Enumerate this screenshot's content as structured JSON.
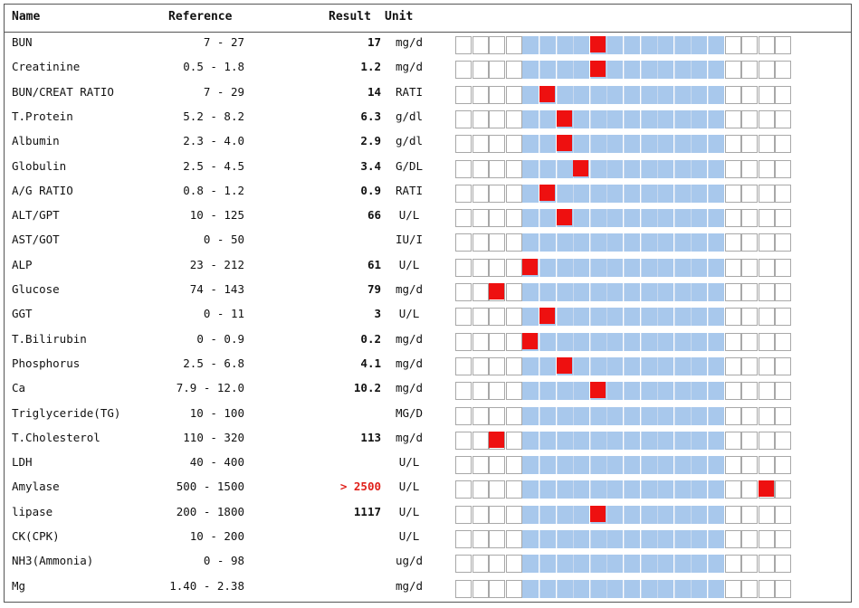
{
  "header": {
    "name": "Name",
    "reference": "Reference",
    "result": "Result",
    "unit": "Unit"
  },
  "colors": {
    "normal_band": "#a8c8ec",
    "marker": "#ee1010",
    "high_text": "#e0201a"
  },
  "rows": [
    {
      "name": "BUN",
      "reference": "7 - 27",
      "result": "17",
      "unit": "mg/d",
      "marker": 8,
      "high": false
    },
    {
      "name": "Creatinine",
      "reference": "0.5 - 1.8",
      "result": "1.2",
      "unit": "mg/d",
      "marker": 8,
      "high": false
    },
    {
      "name": "BUN/CREAT RATIO",
      "reference": "7 - 29",
      "result": "14",
      "unit": "RATI",
      "marker": 5,
      "high": false
    },
    {
      "name": "T.Protein",
      "reference": "5.2 - 8.2",
      "result": "6.3",
      "unit": "g/dl",
      "marker": 6,
      "high": false
    },
    {
      "name": "Albumin",
      "reference": "2.3 - 4.0",
      "result": "2.9",
      "unit": "g/dl",
      "marker": 6,
      "high": false
    },
    {
      "name": "Globulin",
      "reference": "2.5 - 4.5",
      "result": "3.4",
      "unit": "G/DL",
      "marker": 7,
      "high": false
    },
    {
      "name": "A/G RATIO",
      "reference": "0.8 - 1.2",
      "result": "0.9",
      "unit": "RATI",
      "marker": 5,
      "high": false
    },
    {
      "name": "ALT/GPT",
      "reference": "10 - 125",
      "result": "66",
      "unit": "U/L",
      "marker": 6,
      "high": false
    },
    {
      "name": "AST/GOT",
      "reference": "0 - 50",
      "result": "",
      "unit": "IU/I",
      "marker": null,
      "high": false
    },
    {
      "name": "ALP",
      "reference": "23 - 212",
      "result": "61",
      "unit": "U/L",
      "marker": 4,
      "high": false
    },
    {
      "name": "Glucose",
      "reference": "74 - 143",
      "result": "79",
      "unit": "mg/d",
      "marker": 2,
      "high": false
    },
    {
      "name": "GGT",
      "reference": "0 - 11",
      "result": "3",
      "unit": "U/L",
      "marker": 5,
      "high": false
    },
    {
      "name": "T.Bilirubin",
      "reference": "0 - 0.9",
      "result": "0.2",
      "unit": "mg/d",
      "marker": 4,
      "high": false
    },
    {
      "name": "Phosphorus",
      "reference": "2.5 - 6.8",
      "result": "4.1",
      "unit": "mg/d",
      "marker": 6,
      "high": false
    },
    {
      "name": "Ca",
      "reference": "7.9 - 12.0",
      "result": "10.2",
      "unit": "mg/d",
      "marker": 8,
      "high": false
    },
    {
      "name": "Triglyceride(TG)",
      "reference": "10 - 100",
      "result": "",
      "unit": "MG/D",
      "marker": null,
      "high": false
    },
    {
      "name": "T.Cholesterol",
      "reference": "110 - 320",
      "result": "113",
      "unit": "mg/d",
      "marker": 2,
      "high": false
    },
    {
      "name": "LDH",
      "reference": "40 - 400",
      "result": "",
      "unit": "U/L",
      "marker": null,
      "high": false
    },
    {
      "name": "Amylase",
      "reference": "500 - 1500",
      "result": "> 2500",
      "unit": "U/L",
      "marker": 18,
      "high": true
    },
    {
      "name": "lipase",
      "reference": "200 - 1800",
      "result": "1117",
      "unit": "U/L",
      "marker": 8,
      "high": false
    },
    {
      "name": "CK(CPK)",
      "reference": "10 - 200",
      "result": "",
      "unit": "U/L",
      "marker": null,
      "high": false
    },
    {
      "name": "NH3(Ammonia)",
      "reference": "0 - 98",
      "result": "",
      "unit": "ug/d",
      "marker": null,
      "high": false
    },
    {
      "name": "Mg",
      "reference": "1.40 - 2.38",
      "result": "",
      "unit": "mg/d",
      "marker": null,
      "high": false
    }
  ]
}
